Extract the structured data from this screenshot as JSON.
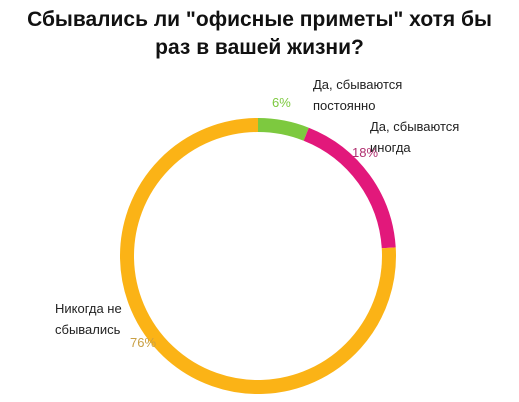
{
  "chart_data": {
    "type": "donut",
    "title": "Сбывались ли \"офисные приметы\" хотя бы раз в вашей жизни?",
    "categories": [
      "Да, сбываются постоянно",
      "Да, сбываются иногда",
      "Никогда не сбывались"
    ],
    "values": [
      6,
      18,
      76
    ],
    "value_labels": [
      "6%",
      "18%",
      "76%"
    ],
    "colors": [
      "#7dc93f",
      "#e2187b",
      "#fbb316"
    ]
  }
}
